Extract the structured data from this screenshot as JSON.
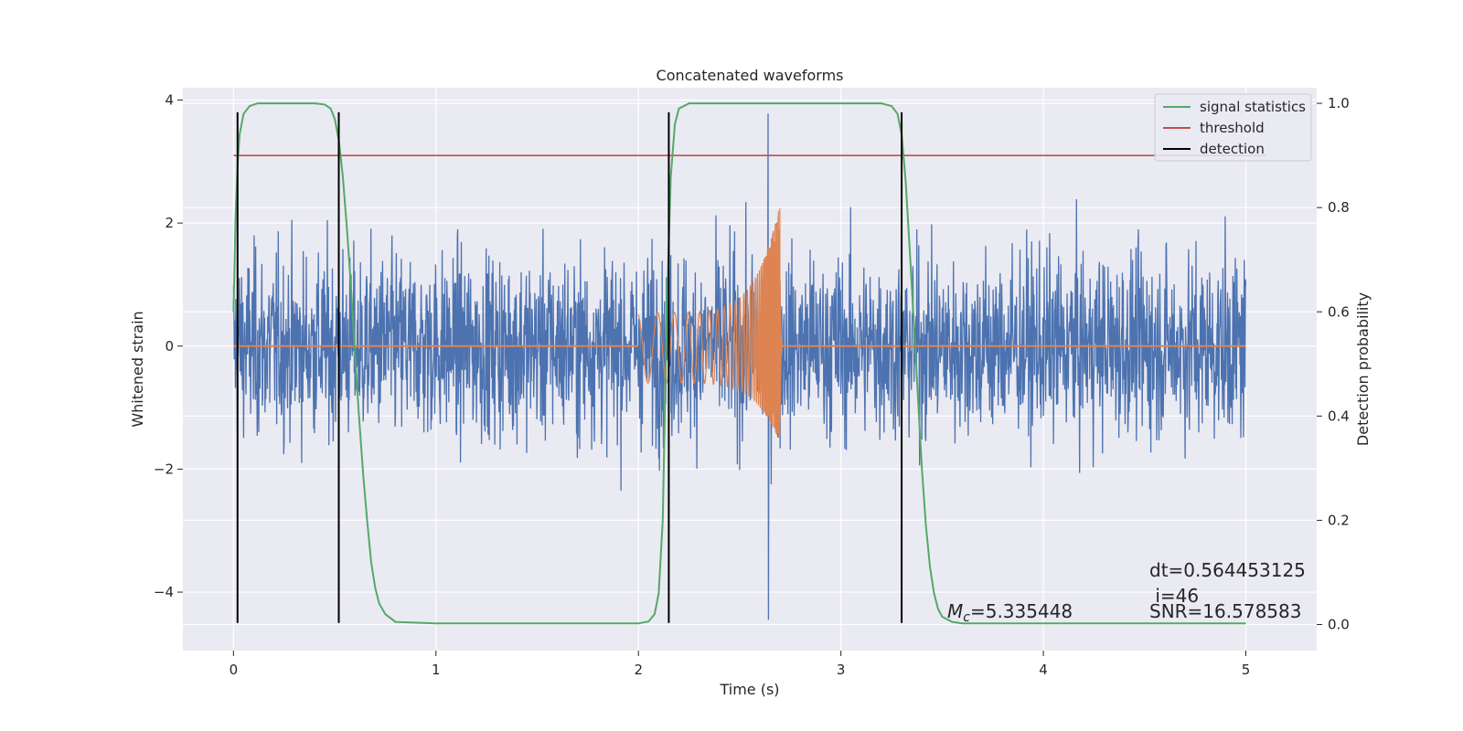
{
  "chart_data": {
    "type": "line",
    "title": "Concatenated waveforms",
    "xlabel": "Time (s)",
    "ylabel": "Whitened strain",
    "ylabel_right": "Detection probability",
    "xlim": [
      -0.25,
      5.35
    ],
    "ylim": [
      -4.95,
      4.2
    ],
    "ylim_right": [
      -0.05,
      1.03
    ],
    "xticks": [
      0,
      1,
      2,
      3,
      4,
      5
    ],
    "yticks": [
      -4,
      -2,
      0,
      2,
      4
    ],
    "yticks_right": [
      0.0,
      0.2,
      0.4,
      0.6,
      0.8,
      1.0
    ],
    "ytick_labels": [
      "−4",
      "−2",
      "0",
      "2",
      "4"
    ],
    "ytick_labels_right": [
      "0.0",
      "0.2",
      "0.4",
      "0.6",
      "0.8",
      "1.0"
    ],
    "grid": true,
    "legend_position": "top-right",
    "colors": {
      "background": "#eaeaf2",
      "grid": "#ffffff",
      "noise": "#4c72b0",
      "template": "#dd8452",
      "statistics": "#55a868",
      "threshold": "#c44e52",
      "detection": "#000000"
    },
    "series": [
      {
        "name": "signal statistics",
        "axis": "right",
        "x": [
          0,
          0.01,
          0.02,
          0.03,
          0.05,
          0.08,
          0.12,
          0.2,
          0.3,
          0.4,
          0.45,
          0.48,
          0.5,
          0.52,
          0.54,
          0.56,
          0.58,
          0.6,
          0.62,
          0.64,
          0.66,
          0.68,
          0.7,
          0.72,
          0.75,
          0.8,
          1.0,
          1.5,
          2.0,
          2.05,
          2.08,
          2.1,
          2.12,
          2.14,
          2.16,
          2.18,
          2.2,
          2.25,
          2.3,
          2.5,
          3.0,
          3.2,
          3.25,
          3.28,
          3.3,
          3.32,
          3.34,
          3.36,
          3.38,
          3.4,
          3.42,
          3.44,
          3.46,
          3.48,
          3.5,
          3.55,
          3.6,
          4.0,
          4.5,
          5.0
        ],
        "y": [
          0.6,
          0.78,
          0.88,
          0.94,
          0.98,
          0.995,
          1.0,
          1.0,
          1.0,
          1.0,
          0.998,
          0.99,
          0.97,
          0.93,
          0.86,
          0.76,
          0.65,
          0.52,
          0.4,
          0.29,
          0.2,
          0.12,
          0.07,
          0.04,
          0.02,
          0.005,
          0.002,
          0.002,
          0.002,
          0.006,
          0.02,
          0.06,
          0.2,
          0.6,
          0.86,
          0.96,
          0.99,
          1.0,
          1.0,
          1.0,
          1.0,
          1.0,
          0.995,
          0.98,
          0.94,
          0.85,
          0.72,
          0.58,
          0.44,
          0.3,
          0.19,
          0.11,
          0.06,
          0.03,
          0.015,
          0.005,
          0.002,
          0.002,
          0.002,
          0.002
        ]
      },
      {
        "name": "threshold",
        "axis": "right",
        "x": [
          0,
          5.1
        ],
        "y": [
          0.9,
          0.9
        ]
      },
      {
        "name": "detection",
        "axis": "left",
        "vlines": [
          0.02,
          0.52,
          2.15,
          3.3
        ],
        "ymin": -4.5,
        "ymax": 3.8
      }
    ],
    "noise": {
      "x_range": [
        0,
        5.0
      ],
      "typical_amplitude": 1.0,
      "max": 3.78,
      "min": -4.45
    },
    "template": {
      "x_start": 2.0,
      "x_merger": 2.7,
      "x_end": 5.0,
      "upper_start": 0.55,
      "lower_start": -0.6,
      "peak": 2.35,
      "trough": -1.6
    },
    "annotations": {
      "dt": "dt=0.564453125",
      "i": " i=46",
      "snr": "SNR=16.578583",
      "mc_symbol": "M",
      "mc_sub": "c",
      "mc_value": "=5.335448"
    }
  }
}
